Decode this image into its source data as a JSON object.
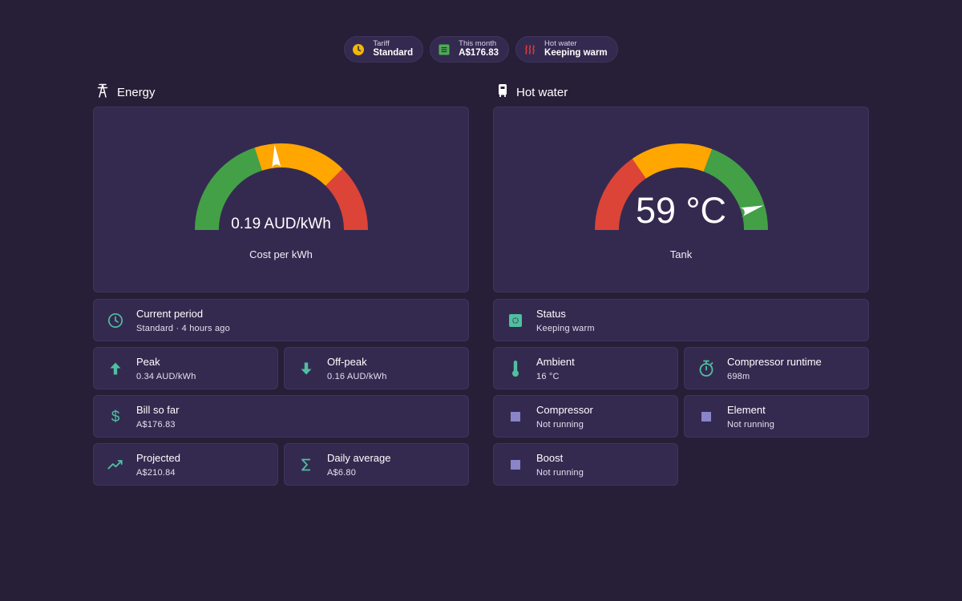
{
  "chips": [
    {
      "label": "Tariff",
      "value": "Standard",
      "icon": "clock-icon",
      "color": "#f2b705"
    },
    {
      "label": "This month",
      "value": "A$176.83",
      "icon": "receipt-icon",
      "color": "#4caf50"
    },
    {
      "label": "Hot water",
      "value": "Keeping warm",
      "icon": "heat-waves-icon",
      "color": "#e53935"
    }
  ],
  "energy": {
    "title": "Energy",
    "icon": "transmission-tower-icon",
    "gauge": {
      "value_text": "0.19 AUD/kWh",
      "label": "Cost per kWh",
      "value": 0.19,
      "min": 0,
      "max": 0.4,
      "segments": [
        {
          "from": 0,
          "to": 0.16,
          "color": "#43a047"
        },
        {
          "from": 0.16,
          "to": 0.3,
          "color": "#ffa600"
        },
        {
          "from": 0.3,
          "to": 0.4,
          "color": "#db4437"
        }
      ]
    },
    "tiles": [
      {
        "title": "Current period",
        "sub": "Standard · 4 hours ago",
        "icon": "clock-icon"
      },
      {
        "title": "Peak",
        "sub": "0.34 AUD/kWh",
        "icon": "arrow-up-icon"
      },
      {
        "title": "Off-peak",
        "sub": "0.16 AUD/kWh",
        "icon": "arrow-down-icon"
      },
      {
        "title": "Bill so far",
        "sub": "A$176.83",
        "icon": "dollar-icon"
      },
      {
        "title": "Projected",
        "sub": "A$210.84",
        "icon": "trending-up-icon"
      },
      {
        "title": "Daily average",
        "sub": "A$6.80",
        "icon": "sigma-icon"
      }
    ]
  },
  "hot_water": {
    "title": "Hot water",
    "icon": "water-heater-icon",
    "gauge": {
      "value_text": "59 °C",
      "label": "Tank",
      "value": 59,
      "min": 0,
      "max": 65,
      "segments": [
        {
          "from": 0,
          "to": 20,
          "color": "#db4437"
        },
        {
          "from": 20,
          "to": 40,
          "color": "#ffa600"
        },
        {
          "from": 40,
          "to": 65,
          "color": "#43a047"
        }
      ]
    },
    "tiles": [
      {
        "title": "Status",
        "sub": "Keeping warm",
        "icon": "status-icon"
      },
      {
        "title": "Ambient",
        "sub": "16 °C",
        "icon": "thermometer-icon"
      },
      {
        "title": "Compressor runtime",
        "sub": "698m",
        "icon": "timer-icon"
      },
      {
        "title": "Compressor",
        "sub": "Not running",
        "icon": "square-icon"
      },
      {
        "title": "Element",
        "sub": "Not running",
        "icon": "square-icon"
      },
      {
        "title": "Boost",
        "sub": "Not running",
        "icon": "square-icon"
      }
    ]
  },
  "colors": {
    "accent_green": "#4fbf9f",
    "muted_square": "#8a84c8"
  }
}
